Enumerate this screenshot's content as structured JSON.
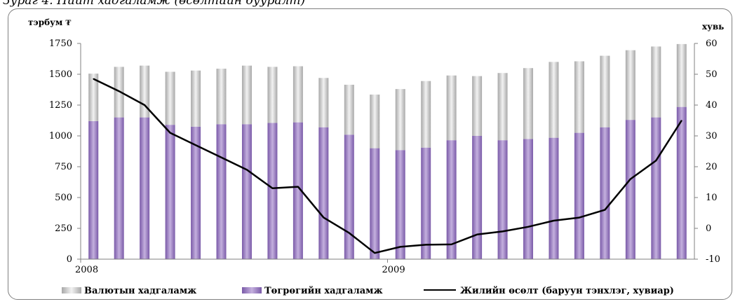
{
  "caption": "Зураг 4. Нийт хадгаламж (өсөлтийн бууралт)",
  "chart_data": {
    "type": "bar",
    "stacked": true,
    "title": "Зураг 4. Нийт хадгаламж (өсөлтийн бууралт)",
    "left_unit": "тэрбум ₮",
    "right_unit": "хувь",
    "ylim_left": [
      0,
      1750
    ],
    "yticks_left": [
      0,
      250,
      500,
      750,
      1000,
      1250,
      1500,
      1750
    ],
    "ytick_labels_left": [
      "0",
      "250",
      "500",
      "750",
      "1000",
      "1250",
      "1500",
      "1750"
    ],
    "ylim_right": [
      -10,
      60
    ],
    "yticks_right": [
      -10,
      0,
      10,
      20,
      30,
      40,
      50,
      60
    ],
    "ytick_labels_right": [
      "-10",
      "0",
      "10",
      "20",
      "30",
      "40",
      "50",
      "60"
    ],
    "x_labels": [
      {
        "text": "2008",
        "index": 0
      },
      {
        "text": "2009",
        "index": 12
      }
    ],
    "series": [
      {
        "name": "Төгрөгийн хадгаламж",
        "kind": "bar",
        "color": "#9a7cc0",
        "values": [
          1120,
          1150,
          1150,
          1090,
          1075,
          1095,
          1095,
          1105,
          1110,
          1070,
          1010,
          900,
          885,
          905,
          965,
          1000,
          965,
          975,
          985,
          1025,
          1070,
          1130,
          1150,
          1235
        ]
      },
      {
        "name": "Валютын хадгаламж",
        "kind": "bar",
        "color": "#c8c8c8",
        "values": [
          385,
          410,
          420,
          430,
          455,
          450,
          475,
          455,
          455,
          400,
          405,
          435,
          495,
          540,
          525,
          485,
          545,
          575,
          615,
          580,
          580,
          565,
          575,
          510
        ]
      },
      {
        "name": "Жилийн өсөлт (баруун тэнхлэг, хувиар)",
        "kind": "line",
        "color": "#000000",
        "axis": "right",
        "values": [
          48.5,
          44.5,
          40,
          31,
          27,
          23,
          19,
          13,
          13.5,
          3.5,
          -1.5,
          -8,
          -6,
          -5.3,
          -5.2,
          -2,
          -1,
          0.5,
          2.5,
          3.5,
          6,
          16,
          22,
          35
        ]
      }
    ],
    "legend": {
      "placement": "bottom",
      "order": [
        "Валютын хадгаламж",
        "Төгрөгийн хадгаламж",
        "Жилийн өсөлт (баруун тэнхлэг, хувиар)"
      ]
    },
    "grid": false
  }
}
